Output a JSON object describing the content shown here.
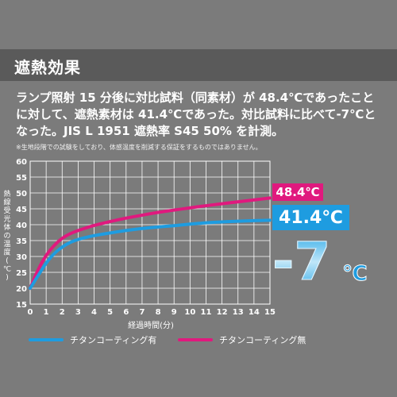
{
  "header": {
    "title": "遮熱効果"
  },
  "description": {
    "lines": [
      "ランプ照射 15 分後に対比試料（同素材）が 48.4℃であったこと",
      "に対して、遮熱素材は 41.4℃であった。対比試料に比べて-7℃と",
      "なった。JIS L 1951 遮熱率 S45 50% を計測。"
    ],
    "note": "※生地段階での試験をしており、体感温度を削減する保証をするものではありません。"
  },
  "chart_data": {
    "type": "line",
    "xlabel": "経過時間(分)",
    "ylabel": "熱線受光体の温度(℃)",
    "xlim": [
      0,
      15
    ],
    "ylim": [
      15,
      60
    ],
    "xticks": [
      0,
      1,
      2,
      3,
      4,
      5,
      6,
      7,
      8,
      9,
      10,
      11,
      12,
      13,
      14,
      15
    ],
    "yticks": [
      15,
      20,
      25,
      30,
      35,
      40,
      45,
      50,
      55,
      60
    ],
    "grid": true,
    "legend_position": "bottom",
    "x": [
      0,
      0.5,
      1,
      1.5,
      2,
      2.5,
      3,
      3.5,
      4,
      5,
      6,
      7,
      8,
      9,
      10,
      11,
      12,
      13,
      14,
      15
    ],
    "series": [
      {
        "name": "チタンコーティング有",
        "color": "#1e9ce0",
        "values": [
          20,
          24,
          28,
          31,
          33,
          34.5,
          35.4,
          36,
          36.6,
          37.4,
          38.2,
          38.8,
          39.3,
          39.7,
          40.2,
          40.6,
          40.9,
          41.1,
          41.3,
          41.4
        ]
      },
      {
        "name": "チタンコーティング無",
        "color": "#e0197e",
        "values": [
          20,
          26,
          30.5,
          33.5,
          35.8,
          37.2,
          38.2,
          39,
          39.8,
          41,
          42.1,
          43,
          43.9,
          44.6,
          45.3,
          46,
          46.6,
          47.2,
          47.8,
          48.4
        ]
      }
    ]
  },
  "callouts": {
    "high": "48.4℃",
    "low": "41.4℃",
    "diff_value": "-7",
    "diff_unit": "℃"
  },
  "colors": {
    "background": "#7b7b7b",
    "grid": "#ffffff",
    "accent_pink": "#e0197e",
    "accent_blue": "#1e9ce0"
  }
}
